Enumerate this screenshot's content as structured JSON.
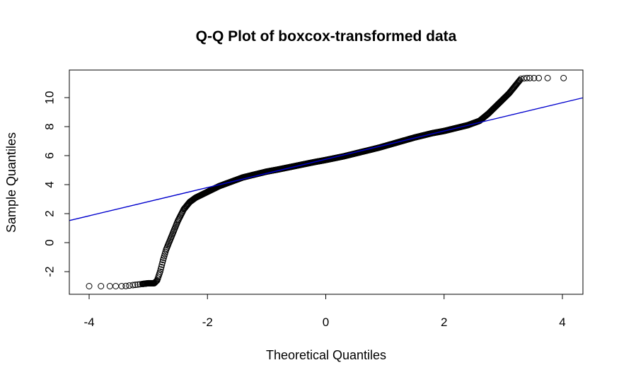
{
  "chart_data": {
    "type": "scatter",
    "title": "Q-Q Plot of boxcox-transformed data",
    "xlabel": "Theoretical Quantiles",
    "ylabel": "Sample Quantiles",
    "xlim": [
      -4.0,
      4.0
    ],
    "ylim": [
      -3.0,
      11.4
    ],
    "x_ticks": [
      "-4",
      "-2",
      "0",
      "2",
      "4"
    ],
    "y_ticks": [
      "-2",
      "0",
      "2",
      "4",
      "6",
      "8",
      "10"
    ],
    "grid": false,
    "legend": "none",
    "point_color": "#000000",
    "line_color": "#0000CD",
    "quantile_curve": {
      "x": [
        -4.0,
        -3.8,
        -3.6,
        -3.4,
        -3.2,
        -3.0,
        -2.9,
        -2.85,
        -2.8,
        -2.75,
        -2.7,
        -2.6,
        -2.5,
        -2.4,
        -2.3,
        -2.2,
        -2.1,
        -2.0,
        -1.8,
        -1.6,
        -1.4,
        -1.2,
        -1.0,
        -0.8,
        -0.5,
        -0.2,
        0.0,
        0.3,
        0.6,
        0.9,
        1.2,
        1.5,
        1.8,
        2.0,
        2.2,
        2.4,
        2.6,
        2.75,
        2.9,
        3.0,
        3.1,
        3.2,
        3.3,
        3.4,
        3.5,
        3.6,
        3.75,
        4.0
      ],
      "y": [
        -3.0,
        -3.0,
        -3.0,
        -3.0,
        -2.9,
        -2.8,
        -2.8,
        -2.6,
        -2.0,
        -1.2,
        -0.5,
        0.5,
        1.5,
        2.3,
        2.8,
        3.1,
        3.3,
        3.5,
        3.9,
        4.2,
        4.5,
        4.7,
        4.9,
        5.05,
        5.3,
        5.55,
        5.7,
        5.95,
        6.25,
        6.55,
        6.9,
        7.25,
        7.55,
        7.7,
        7.9,
        8.1,
        8.4,
        8.9,
        9.5,
        9.9,
        10.3,
        10.8,
        11.3,
        11.35,
        11.35,
        11.35,
        11.35,
        11.35
      ]
    },
    "reference_line": {
      "x": [
        -4.0,
        4.0
      ],
      "y": [
        1.85,
        9.65
      ]
    }
  }
}
